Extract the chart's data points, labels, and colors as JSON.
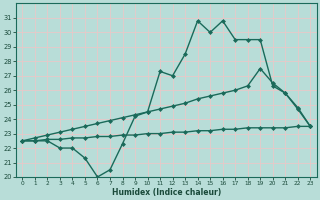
{
  "title": "",
  "xlabel": "Humidex (Indice chaleur)",
  "bg_color": "#b8ddd8",
  "grid_color": "#e8c8c8",
  "line_color": "#1a6a5a",
  "ylim": [
    20,
    32
  ],
  "xlim": [
    -0.5,
    23.5
  ],
  "yticks": [
    20,
    21,
    22,
    23,
    24,
    25,
    26,
    27,
    28,
    29,
    30,
    31
  ],
  "xticks": [
    0,
    1,
    2,
    3,
    4,
    5,
    6,
    7,
    8,
    9,
    10,
    11,
    12,
    13,
    14,
    15,
    16,
    17,
    18,
    19,
    20,
    21,
    22,
    23
  ],
  "series": [
    {
      "x": [
        0,
        1,
        2,
        3,
        4,
        5,
        6,
        7,
        8,
        9,
        10,
        11,
        12,
        13,
        14,
        15,
        16,
        17,
        18,
        19,
        20,
        21,
        22,
        23
      ],
      "y": [
        22.5,
        22.5,
        22.5,
        22.0,
        22.0,
        21.3,
        20.0,
        20.5,
        22.3,
        24.2,
        24.5,
        27.3,
        27.0,
        28.5,
        30.8,
        30.0,
        30.8,
        29.5,
        29.5,
        29.5,
        26.3,
        25.8,
        24.7,
        23.5
      ]
    },
    {
      "x": [
        0,
        1,
        2,
        3,
        4,
        5,
        6,
        7,
        8,
        9,
        10,
        11,
        12,
        13,
        14,
        15,
        16,
        17,
        18,
        19,
        20,
        21,
        22,
        23
      ],
      "y": [
        22.5,
        22.7,
        22.9,
        23.1,
        23.3,
        23.5,
        23.7,
        23.9,
        24.1,
        24.3,
        24.5,
        24.7,
        24.9,
        25.1,
        25.4,
        25.6,
        25.8,
        26.0,
        26.3,
        27.5,
        26.5,
        25.8,
        24.8,
        23.5
      ]
    },
    {
      "x": [
        0,
        1,
        2,
        3,
        4,
        5,
        6,
        7,
        8,
        9,
        10,
        11,
        12,
        13,
        14,
        15,
        16,
        17,
        18,
        19,
        20,
        21,
        22,
        23
      ],
      "y": [
        22.5,
        22.5,
        22.6,
        22.6,
        22.7,
        22.7,
        22.8,
        22.8,
        22.9,
        22.9,
        23.0,
        23.0,
        23.1,
        23.1,
        23.2,
        23.2,
        23.3,
        23.3,
        23.4,
        23.4,
        23.4,
        23.4,
        23.5,
        23.5
      ]
    }
  ]
}
